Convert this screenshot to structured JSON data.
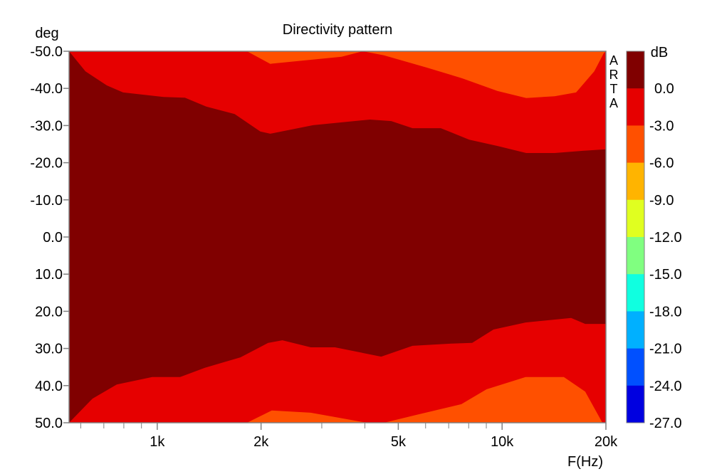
{
  "chart_data": {
    "type": "heatmap",
    "title": "Directivity pattern",
    "ylabel": "deg",
    "xlabel": "F(Hz)",
    "watermark": "ARTA",
    "x_scale": "log",
    "xlim": [
      555,
      20000
    ],
    "ylim": [
      -50,
      50
    ],
    "x_ticks": [
      {
        "value": 1000,
        "label": "1k"
      },
      {
        "value": 2000,
        "label": "2k"
      },
      {
        "value": 5000,
        "label": "5k"
      },
      {
        "value": 10000,
        "label": "10k"
      },
      {
        "value": 20000,
        "label": "20k"
      }
    ],
    "x_minor_ticks": [
      600,
      700,
      800,
      900,
      3000,
      4000,
      6000,
      7000,
      8000,
      9000
    ],
    "y_ticks": [
      -50,
      -40,
      -30,
      -20,
      -10,
      0,
      10,
      20,
      30,
      40,
      50
    ],
    "y_tick_labels": [
      "-50.0",
      "-40.0",
      "-30.0",
      "-20.0",
      "-10.0",
      "0.0",
      "10.0",
      "20.0",
      "30.0",
      "40.0",
      "50.0"
    ],
    "colorbar": {
      "unit": "dB",
      "labels": [
        "0.0",
        "-3.0",
        "-6.0",
        "-9.0",
        "-12.0",
        "-15.0",
        "-18.0",
        "-21.0",
        "-24.0",
        "-27.0"
      ],
      "colors": [
        "#800000",
        "#e60000",
        "#ff5000",
        "#ffb400",
        "#e0ff20",
        "#80ff80",
        "#10ffe0",
        "#00b0ff",
        "#0050ff",
        "#0000e0"
      ]
    },
    "contours": {
      "top_0dB": [
        [
          555,
          -50
        ],
        [
          619,
          -44.6
        ],
        [
          714,
          -40.8
        ],
        [
          796,
          -38.9
        ],
        [
          1043,
          -37.7
        ],
        [
          1203,
          -37.5
        ],
        [
          1387,
          -35.1
        ],
        [
          1677,
          -33.1
        ],
        [
          1990,
          -28.4
        ],
        [
          2127,
          -27.8
        ],
        [
          2830,
          -30.1
        ],
        [
          4138,
          -31.6
        ],
        [
          4770,
          -31.2
        ],
        [
          5500,
          -29.3
        ],
        [
          6640,
          -29.3
        ],
        [
          8030,
          -26.2
        ],
        [
          9700,
          -24.5
        ],
        [
          11750,
          -22.6
        ],
        [
          14200,
          -22.6
        ],
        [
          17140,
          -23.2
        ],
        [
          20000,
          -23.6
        ]
      ],
      "bottom_0dB": [
        [
          555,
          50
        ],
        [
          649,
          43.5
        ],
        [
          763,
          39.7
        ],
        [
          967,
          37.7
        ],
        [
          1164,
          37.7
        ],
        [
          1375,
          35.2
        ],
        [
          1743,
          32.4
        ],
        [
          2098,
          28.5
        ],
        [
          2306,
          27.8
        ],
        [
          2788,
          29.7
        ],
        [
          3275,
          29.7
        ],
        [
          4460,
          32.2
        ],
        [
          5500,
          29.3
        ],
        [
          7140,
          28.7
        ],
        [
          8190,
          28.5
        ],
        [
          9440,
          24.9
        ],
        [
          11700,
          23
        ],
        [
          15850,
          21.8
        ],
        [
          17420,
          23.4
        ],
        [
          20000,
          23.4
        ]
      ],
      "top_minus3dB": [
        [
          1820,
          -50
        ],
        [
          2127,
          -46.6
        ],
        [
          3423,
          -48.5
        ],
        [
          3946,
          -50
        ],
        [
          4545,
          -48.9
        ],
        [
          6050,
          -45.6
        ],
        [
          7670,
          -42.7
        ],
        [
          9700,
          -39.3
        ],
        [
          11750,
          -37.4
        ],
        [
          14200,
          -37.9
        ],
        [
          16390,
          -38.9
        ],
        [
          18500,
          -44.6
        ],
        [
          19700,
          -49.4
        ],
        [
          20000,
          -50
        ]
      ],
      "bottom_minus3dB": [
        [
          1820,
          50
        ],
        [
          2148,
          46.7
        ],
        [
          2788,
          47.3
        ],
        [
          4057,
          50
        ],
        [
          4545,
          50
        ],
        [
          5634,
          47.9
        ],
        [
          7620,
          45
        ],
        [
          9010,
          41
        ],
        [
          11700,
          37.7
        ],
        [
          15100,
          37.7
        ],
        [
          17420,
          41.6
        ],
        [
          19540,
          50
        ]
      ]
    }
  }
}
